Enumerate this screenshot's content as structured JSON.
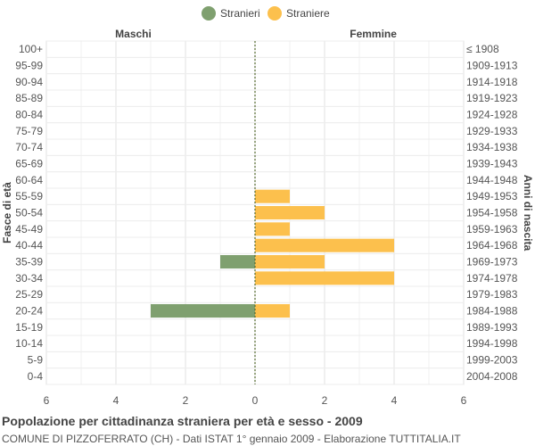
{
  "chart_data": {
    "type": "bar",
    "orientation": "horizontal-pyramid",
    "legend": [
      {
        "name": "Stranieri",
        "color": "#7fa06f"
      },
      {
        "name": "Straniere",
        "color": "#fcc04d"
      }
    ],
    "legend_position": "top-center",
    "left_header": "Maschi",
    "right_header": "Femmine",
    "ylabel_left": "Fasce di età",
    "ylabel_right": "Anni di nascita",
    "age_groups": [
      "100+",
      "95-99",
      "90-94",
      "85-89",
      "80-84",
      "75-79",
      "70-74",
      "65-69",
      "60-64",
      "55-59",
      "50-54",
      "45-49",
      "40-44",
      "35-39",
      "30-34",
      "25-29",
      "20-24",
      "15-19",
      "10-14",
      "5-9",
      "0-4"
    ],
    "birth_years": [
      "≤ 1908",
      "1909-1913",
      "1914-1918",
      "1919-1923",
      "1924-1928",
      "1929-1933",
      "1934-1938",
      "1939-1943",
      "1944-1948",
      "1949-1953",
      "1954-1958",
      "1959-1963",
      "1964-1968",
      "1969-1973",
      "1974-1978",
      "1979-1983",
      "1984-1988",
      "1989-1993",
      "1994-1998",
      "1999-2003",
      "2004-2008"
    ],
    "series": [
      {
        "name": "Stranieri",
        "side": "left",
        "color": "#7fa06f",
        "values": [
          0,
          0,
          0,
          0,
          0,
          0,
          0,
          0,
          0,
          0,
          0,
          0,
          0,
          1,
          0,
          0,
          3,
          0,
          0,
          0,
          0
        ]
      },
      {
        "name": "Straniere",
        "side": "right",
        "color": "#fcc04d",
        "values": [
          0,
          0,
          0,
          0,
          0,
          0,
          0,
          0,
          0,
          1,
          2,
          1,
          4,
          2,
          4,
          0,
          1,
          0,
          0,
          0,
          0
        ]
      }
    ],
    "xlim": [
      -6,
      6
    ],
    "x_ticks": [
      -6,
      -4,
      -2,
      0,
      2,
      4,
      6
    ],
    "x_tick_labels": [
      "6",
      "4",
      "2",
      "0",
      "2",
      "4",
      "6"
    ],
    "grid": true
  },
  "footer": {
    "title": "Popolazione per cittadinanza straniera per età e sesso - 2009",
    "subtitle": "COMUNE DI PIZZOFERRATO (CH) - Dati ISTAT 1° gennaio 2009 - Elaborazione TUTTITALIA.IT"
  }
}
